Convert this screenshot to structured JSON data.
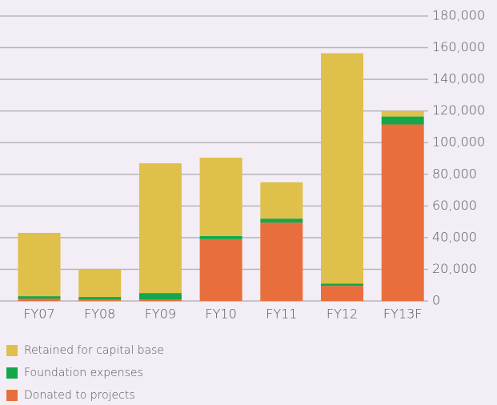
{
  "chart_data": {
    "type": "stacked_bar",
    "categories": [
      "FY07",
      "FY08",
      "FY09",
      "FY10",
      "FY11",
      "FY12",
      "FY13F"
    ],
    "series": [
      {
        "name": "Retained for capital base",
        "color": "#dfc04a",
        "values": [
          40000,
          17500,
          82000,
          49500,
          23000,
          145500,
          3500
        ]
      },
      {
        "name": "Foundation expenses",
        "color": "#12a84a",
        "values": [
          1500,
          1500,
          4000,
          2000,
          2500,
          1500,
          5000
        ]
      },
      {
        "name": "Donated to projects",
        "color": "#e86f3d",
        "values": [
          1500,
          1000,
          1000,
          39000,
          49500,
          9500,
          111500
        ]
      }
    ],
    "ylim": [
      0,
      180000
    ],
    "yticks": [
      0,
      {
        "value": 20000,
        "label": "20,000"
      },
      {
        "value": 40000,
        "label": "40,000"
      },
      {
        "value": 60000,
        "label": "60,000"
      },
      {
        "value": 80000,
        "label": "80,000"
      },
      {
        "value": 100000,
        "label": "100,000"
      },
      {
        "value": 120000,
        "label": "120,000"
      },
      {
        "value": 140000,
        "label": "140,000"
      },
      {
        "value": 160000,
        "label": "160,000"
      },
      {
        "value": 180000,
        "label": "180,000"
      }
    ],
    "grid": true,
    "legend": "bottom"
  }
}
